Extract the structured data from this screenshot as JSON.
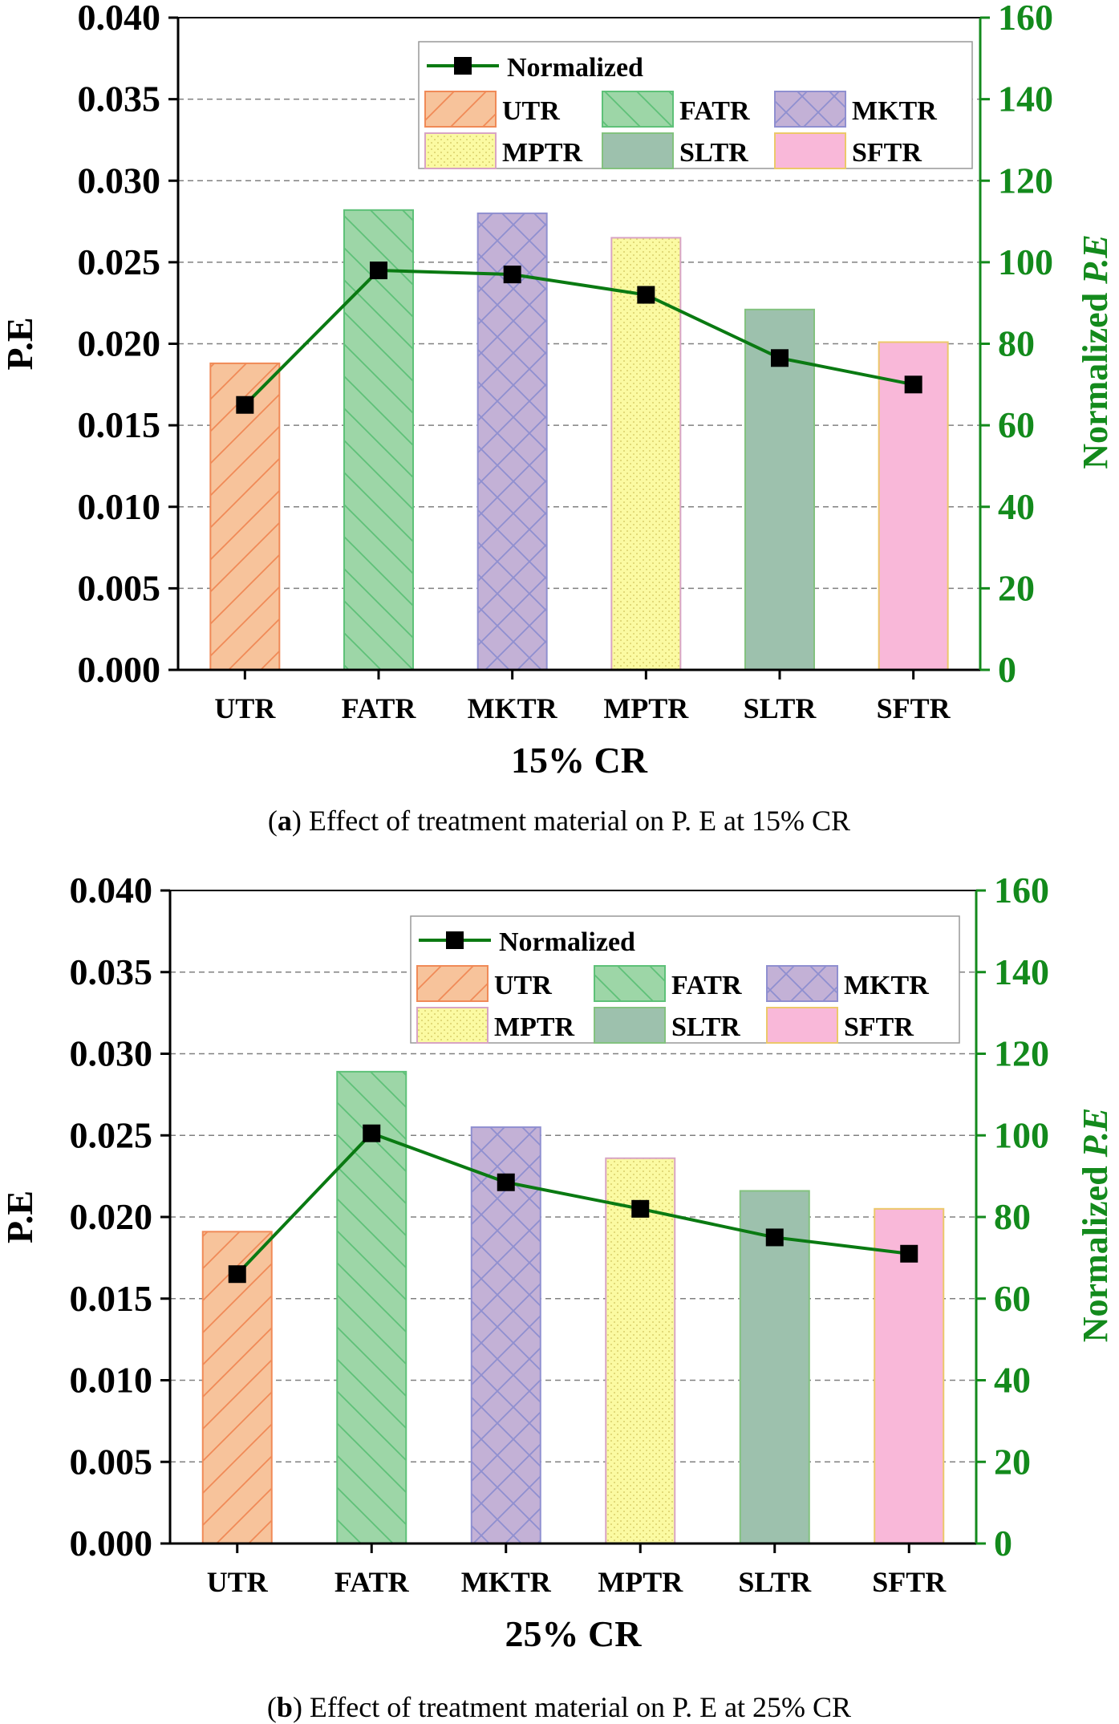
{
  "colors": {
    "line": "#0a7a12",
    "right_axis": "#138a1c",
    "grid": "#808080"
  },
  "series_styles": [
    {
      "name": "UTR",
      "fill": "#f7c39b",
      "stroke": "#f08a57",
      "hatch": "fdiag"
    },
    {
      "name": "FATR",
      "fill": "#9dd6a7",
      "stroke": "#5ec178",
      "hatch": "bdiag"
    },
    {
      "name": "MKTR",
      "fill": "#c3b1d6",
      "stroke": "#8f8fd0",
      "hatch": "cross"
    },
    {
      "name": "MPTR",
      "fill": "#fbfaa2",
      "stroke": "#d8a4c4",
      "hatch": "dots"
    },
    {
      "name": "SLTR",
      "fill": "#9dc1ad",
      "stroke": "#83c27f",
      "hatch": "none"
    },
    {
      "name": "SFTR",
      "fill": "#f9b8d9",
      "stroke": "#ecc86a",
      "hatch": "none"
    }
  ],
  "chart_data": [
    {
      "type": "bar",
      "id": "a",
      "title": "",
      "categories": [
        "UTR",
        "FATR",
        "MKTR",
        "MPTR",
        "SLTR",
        "SFTR"
      ],
      "values": [
        0.0188,
        0.0282,
        0.028,
        0.0265,
        0.0221,
        0.0201
      ],
      "xlabel": "15% CR",
      "ylabel": "P.E",
      "ylim": [
        0,
        0.04
      ],
      "yticks": [
        "0.000",
        "0.005",
        "0.010",
        "0.015",
        "0.020",
        "0.025",
        "0.030",
        "0.035",
        "0.040"
      ],
      "y2label_prefix": "Normalized ",
      "y2label_italic": "P.E",
      "y2lim": [
        0,
        160
      ],
      "y2ticks": [
        "0",
        "20",
        "40",
        "60",
        "80",
        "100",
        "120",
        "140",
        "160"
      ],
      "line_series": {
        "name": "Normalized",
        "values": [
          65,
          98,
          97,
          92,
          76.5,
          70
        ]
      },
      "legend": {
        "line_label": "Normalized",
        "bar_labels": [
          "UTR",
          "FATR",
          "MKTR",
          "MPTR",
          "SLTR",
          "SFTR"
        ],
        "position": "top-right"
      },
      "caption_prefix": "(",
      "caption_letter": "a",
      "caption_text": ") Effect of treatment material on P. E at 15% CR",
      "grid": true
    },
    {
      "type": "bar",
      "id": "b",
      "title": "",
      "categories": [
        "UTR",
        "FATR",
        "MKTR",
        "MPTR",
        "SLTR",
        "SFTR"
      ],
      "values": [
        0.0191,
        0.0289,
        0.0255,
        0.0236,
        0.0216,
        0.0205
      ],
      "xlabel": "25% CR",
      "ylabel": "P.E",
      "ylim": [
        0,
        0.04
      ],
      "yticks": [
        "0.000",
        "0.005",
        "0.010",
        "0.015",
        "0.020",
        "0.025",
        "0.030",
        "0.035",
        "0.040"
      ],
      "y2label_prefix": "Normalized ",
      "y2label_italic": "P.E",
      "y2lim": [
        0,
        160
      ],
      "y2ticks": [
        "0",
        "20",
        "40",
        "60",
        "80",
        "100",
        "120",
        "140",
        "160"
      ],
      "line_series": {
        "name": "Normalized",
        "values": [
          66,
          100.5,
          88.5,
          82,
          75,
          71
        ]
      },
      "legend": {
        "line_label": "Normalized",
        "bar_labels": [
          "UTR",
          "FATR",
          "MKTR",
          "MPTR",
          "SLTR",
          "SFTR"
        ],
        "position": "top-right"
      },
      "caption_prefix": "(",
      "caption_letter": "b",
      "caption_text": ") Effect of treatment material on P. E at 25% CR",
      "grid": true
    }
  ]
}
